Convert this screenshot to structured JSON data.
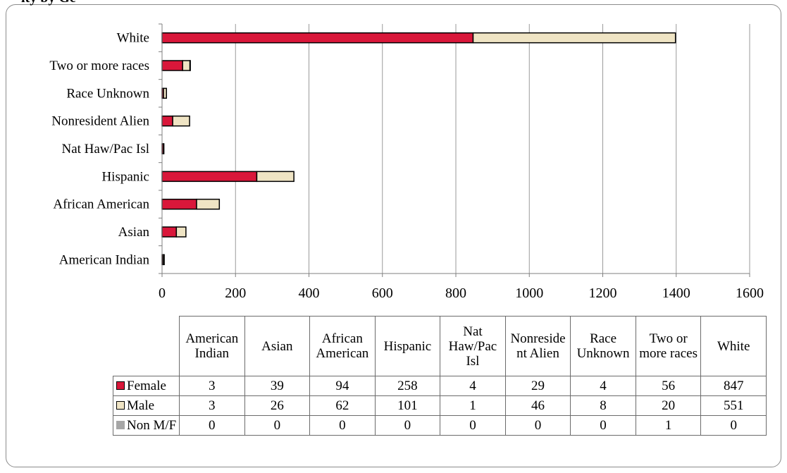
{
  "title": "ity by Ge",
  "colors": {
    "Female": "#d9173a",
    "Male": "#efe4c4",
    "Non M/F": "#a6a6a6"
  },
  "chart_data": {
    "type": "bar",
    "orientation": "horizontal",
    "stacked": true,
    "categories": [
      "American Indian",
      "Asian",
      "African American",
      "Hispanic",
      "Nat Haw/Pac Isl",
      "Nonresident Alien",
      "Race Unknown",
      "Two or more races",
      "White"
    ],
    "table_headers": [
      "American Indian",
      "Asian",
      "African American",
      "Hispanic",
      "Nat Haw/Pac Isl",
      "Nonreside nt Alien",
      "Race Unknown",
      "Two or more races",
      "White"
    ],
    "series": [
      {
        "name": "Female",
        "values": [
          3,
          39,
          94,
          258,
          4,
          29,
          4,
          56,
          847
        ]
      },
      {
        "name": "Male",
        "values": [
          3,
          26,
          62,
          101,
          1,
          46,
          8,
          20,
          551
        ]
      },
      {
        "name": "Non M/F",
        "values": [
          0,
          0,
          0,
          0,
          0,
          0,
          0,
          1,
          0
        ]
      }
    ],
    "xlim": [
      0,
      1600
    ],
    "xticks": [
      0,
      200,
      400,
      600,
      800,
      1000,
      1200,
      1400,
      1600
    ],
    "grid": true,
    "legend": "data-table"
  }
}
